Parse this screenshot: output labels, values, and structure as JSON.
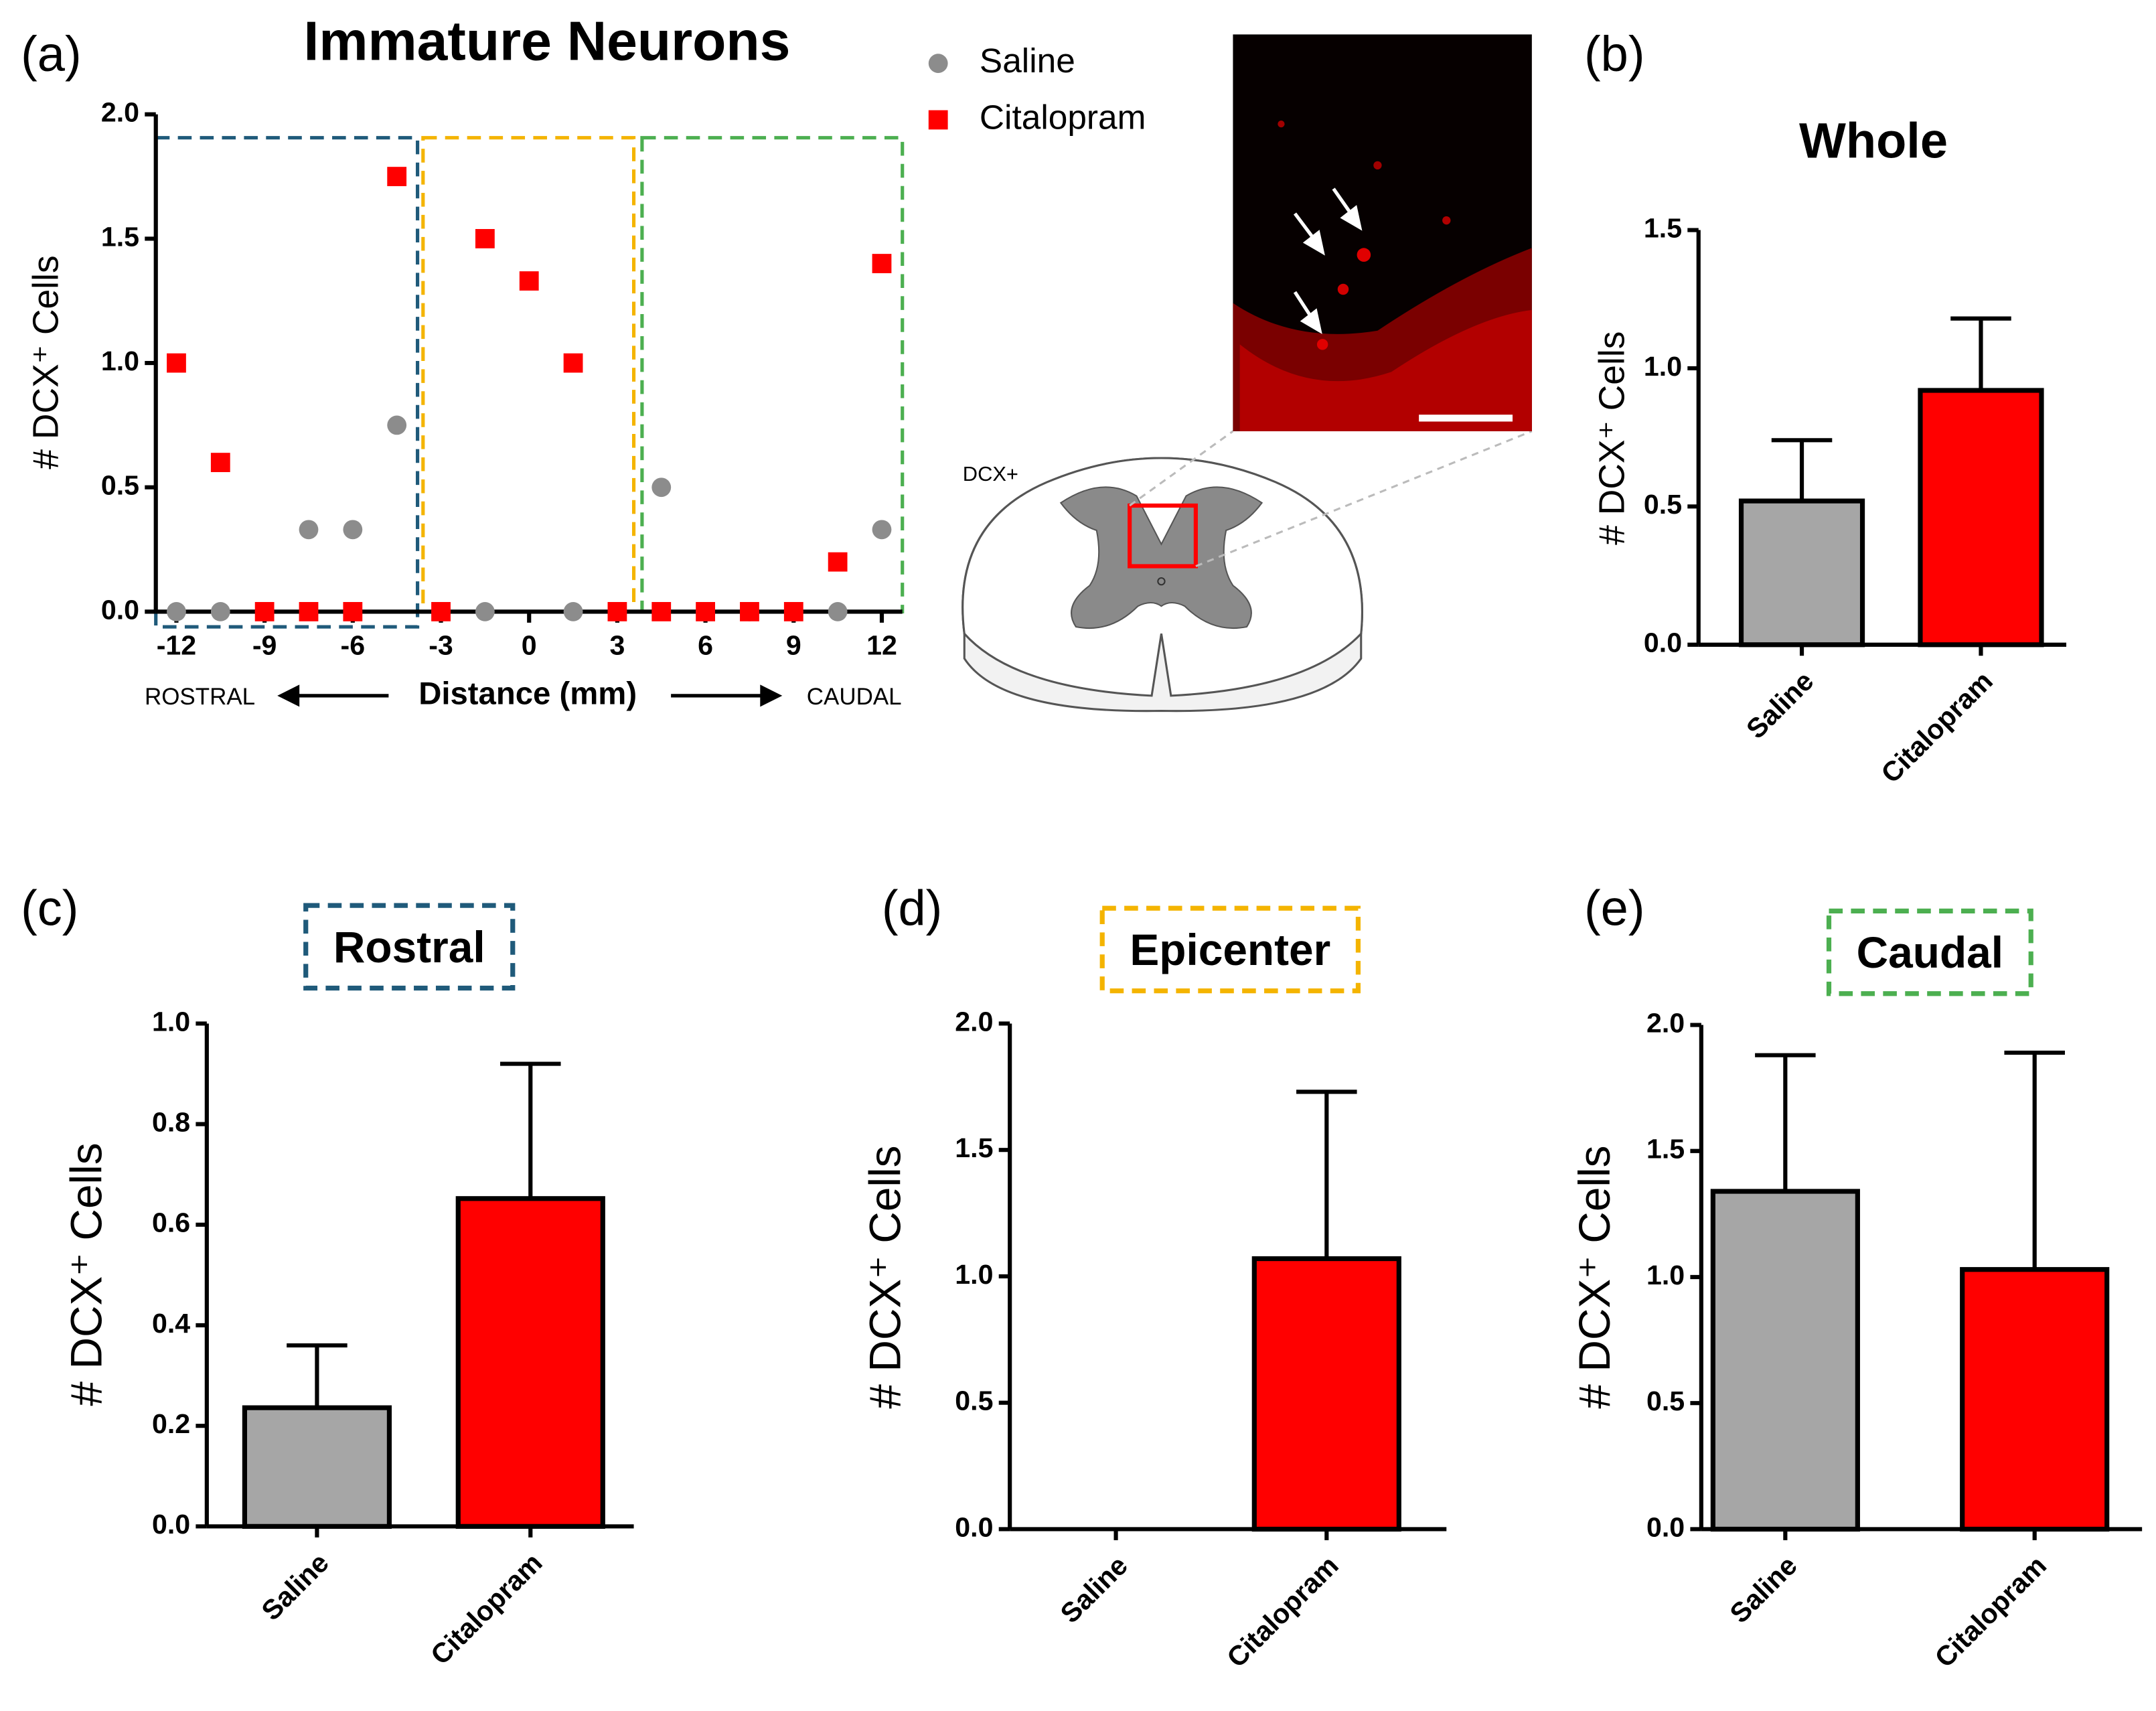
{
  "chart_data": [
    {
      "type": "scatter",
      "panel_label": "(a)",
      "title": "Immature Neurons",
      "x_label": "Distance (mm)",
      "y_label": "# DCX⁺ Cells",
      "annotations": [
        "ROSTRAL",
        "CAUDAL",
        "DCX+"
      ],
      "x": [
        -12,
        -10.5,
        -9,
        -7.5,
        -6,
        -4.5,
        -3,
        -1.5,
        0,
        1.5,
        3,
        4.5,
        6,
        7.5,
        9,
        10.5,
        12
      ],
      "series": [
        {
          "name": "Saline",
          "color": "#8c8c8c",
          "marker": "circle",
          "values": [
            0,
            0,
            0,
            0.33,
            0.33,
            0.75,
            0,
            0,
            null,
            0,
            0,
            0.5,
            0,
            0,
            0,
            0,
            0.33
          ]
        },
        {
          "name": "Citalopram",
          "color": "#ff0000",
          "marker": "square",
          "values": [
            1.0,
            0.6,
            0,
            0,
            0,
            1.75,
            0,
            1.5,
            1.33,
            1.0,
            0,
            0,
            0,
            0,
            0,
            0.2,
            1.4
          ]
        }
      ],
      "xlim": [
        -12.7,
        12.7
      ],
      "xticks": [
        -12,
        -9,
        -6,
        -3,
        0,
        3,
        6,
        9,
        12
      ],
      "ylim": [
        0,
        2
      ],
      "yticks": [
        {
          "value": 0,
          "label": "0.0"
        },
        0.5,
        {
          "value": 1,
          "label": "1.0"
        },
        1.5,
        {
          "value": 2,
          "label": "2.0"
        }
      ]
    },
    {
      "type": "bar",
      "panel_label": "(b)",
      "title": "Whole",
      "y_label": "# DCX⁺ Cells",
      "categories": [
        "Saline",
        "Citalopram"
      ],
      "values": [
        0.52,
        0.92
      ],
      "errors": [
        0.22,
        0.26
      ],
      "colors": [
        "#a6a6a6",
        "#ff0000"
      ],
      "ylim": [
        0,
        1.5
      ],
      "yticks": [
        {
          "value": 0,
          "label": "0.0"
        },
        0.5,
        {
          "value": 1,
          "label": "1.0"
        },
        1.5
      ]
    },
    {
      "type": "bar",
      "panel_label": "(c)",
      "title": "Rostral",
      "title_frame_color": "#1f5a7a",
      "y_label": "# DCX⁺ Cells",
      "categories": [
        "Saline",
        "Citalopram"
      ],
      "values": [
        0.236,
        0.652
      ],
      "errors": [
        0.124,
        0.268
      ],
      "colors": [
        "#a6a6a6",
        "#ff0000"
      ],
      "ylim": [
        0,
        1
      ],
      "yticks": [
        {
          "value": 0,
          "label": "0.0"
        },
        0.2,
        0.4,
        0.6,
        0.8,
        {
          "value": 1,
          "label": "1.0"
        }
      ]
    },
    {
      "type": "bar",
      "panel_label": "(d)",
      "title": "Epicenter",
      "title_frame_color": "#f4b400",
      "y_label": "# DCX⁺ Cells",
      "categories": [
        "Saline",
        "Citalopram"
      ],
      "values": [
        0,
        1.07
      ],
      "errors": [
        0,
        0.66
      ],
      "colors": [
        "#a6a6a6",
        "#ff0000"
      ],
      "ylim": [
        0,
        2
      ],
      "yticks": [
        {
          "value": 0,
          "label": "0.0"
        },
        0.5,
        {
          "value": 1,
          "label": "1.0"
        },
        1.5,
        {
          "value": 2,
          "label": "2.0"
        }
      ]
    },
    {
      "type": "bar",
      "panel_label": "(e)",
      "title": "Caudal",
      "title_frame_color": "#4caf50",
      "y_label": "# DCX⁺ Cells",
      "categories": [
        "Saline",
        "Citalopram"
      ],
      "values": [
        1.34,
        1.03
      ],
      "errors": [
        0.54,
        0.86
      ],
      "colors": [
        "#a6a6a6",
        "#ff0000"
      ],
      "ylim": [
        0,
        2
      ],
      "yticks": [
        {
          "value": 0,
          "label": "0.0"
        },
        0.5,
        {
          "value": 1,
          "label": "1.0"
        },
        1.5,
        {
          "value": 2,
          "label": "2.0"
        }
      ]
    }
  ]
}
